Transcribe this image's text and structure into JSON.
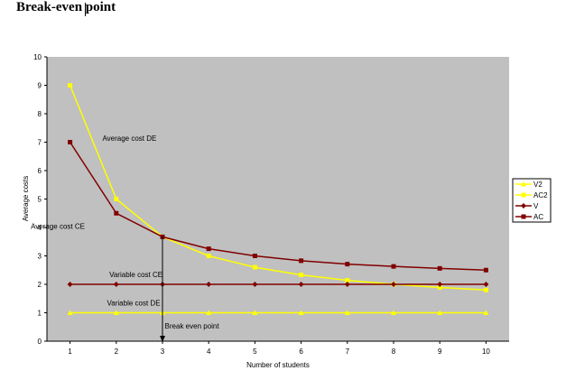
{
  "page": {
    "title": "Break-even point"
  },
  "chart_data": {
    "type": "line",
    "title": "",
    "xlabel": "Number of students",
    "ylabel": "Average costs",
    "x": [
      1,
      2,
      3,
      4,
      5,
      6,
      7,
      8,
      9,
      10
    ],
    "xlim": [
      0.5,
      10.5
    ],
    "ylim": [
      0,
      10
    ],
    "yticks": [
      0,
      1,
      2,
      3,
      4,
      5,
      6,
      7,
      8,
      9,
      10
    ],
    "plot_background": "#c0c0c0",
    "grid": false,
    "legend_position": "right",
    "series": [
      {
        "name": "V2",
        "color": "#ffff00",
        "marker": "triangle",
        "values": [
          1,
          1,
          1,
          1,
          1,
          1,
          1,
          1,
          1,
          1
        ]
      },
      {
        "name": "AC2",
        "color": "#ffff00",
        "marker": "square",
        "values": [
          9,
          5,
          3.67,
          3,
          2.6,
          2.33,
          2.14,
          2,
          1.89,
          1.8
        ]
      },
      {
        "name": "V",
        "color": "#800000",
        "marker": "diamond",
        "values": [
          2,
          2,
          2,
          2,
          2,
          2,
          2,
          2,
          2,
          2
        ]
      },
      {
        "name": "AC",
        "color": "#800000",
        "marker": "square",
        "values": [
          7,
          4.5,
          3.67,
          3.25,
          3,
          2.83,
          2.71,
          2.63,
          2.56,
          2.5
        ]
      }
    ],
    "annotations": [
      {
        "text": "Average cost DE",
        "x": 1.7,
        "y": 7.05
      },
      {
        "text": "Average cost CE",
        "x": 0.15,
        "y": 3.95
      },
      {
        "text": "Variable cost CE",
        "x": 1.85,
        "y": 2.25
      },
      {
        "text": "Variable cost DE",
        "x": 1.8,
        "y": 1.25
      },
      {
        "text": "Break even point",
        "x": 3.05,
        "y": 0.45
      }
    ],
    "break_even": {
      "x": 3,
      "y": 3.67
    }
  }
}
